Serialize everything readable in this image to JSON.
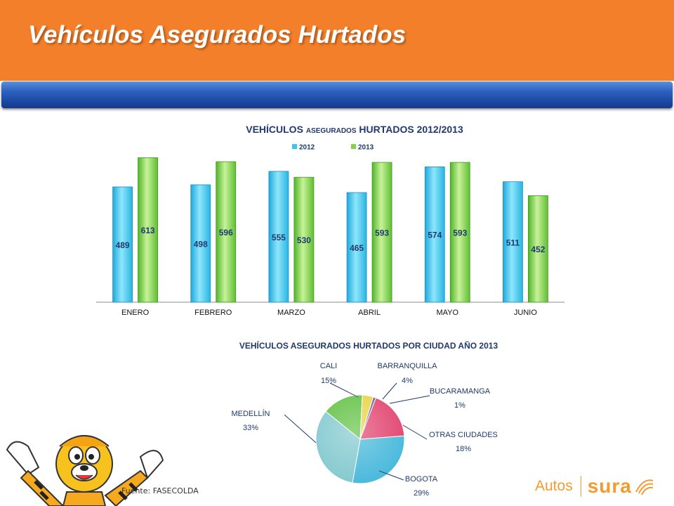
{
  "header": {
    "title": "Vehículos Asegurados Hurtados"
  },
  "bar_chart_title": {
    "main": "VEHÍCULOS",
    "small": "ASEGURADOS",
    "rest": "HURTADOS 2012/2013"
  },
  "pie_chart_title": "VEHÍCULOS ASEGURADOS HURTADOS POR CIUDAD AÑO 2013",
  "source": "Fuente: FASECOLDA",
  "logo": {
    "autos": "Autos",
    "brand": "sura"
  },
  "colors": {
    "header": "#f47f2a",
    "band": "#1f4fa9",
    "series_2012": "#3bc6ea",
    "series_2013": "#7fd44a",
    "title_text": "#1f3a6e"
  },
  "chart_data": [
    {
      "type": "bar",
      "categories": [
        "ENERO",
        "FEBRERO",
        "MARZO",
        "ABRIL",
        "MAYO",
        "JUNIO"
      ],
      "series": [
        {
          "name": "2012",
          "values": [
            489,
            498,
            555,
            465,
            574,
            511
          ]
        },
        {
          "name": "2013",
          "values": [
            613,
            596,
            530,
            593,
            593,
            452
          ]
        }
      ],
      "ylim": [
        0,
        620
      ],
      "legend": "top",
      "grid": false,
      "data_labels": true
    },
    {
      "type": "pie",
      "slices": [
        {
          "label": "CALI",
          "value": 15,
          "display": "15%"
        },
        {
          "label": "BARRANQUILLA",
          "value": 4,
          "display": "4%"
        },
        {
          "label": "BUCARAMANGA",
          "value": 1,
          "display": "1%"
        },
        {
          "label": "OTRAS CIUDADES",
          "value": 18,
          "display": "18%"
        },
        {
          "label": "BOGOTA",
          "value": 29,
          "display": "29%"
        },
        {
          "label": "MEDELLÍN",
          "value": 33,
          "display": "33%"
        }
      ]
    }
  ]
}
